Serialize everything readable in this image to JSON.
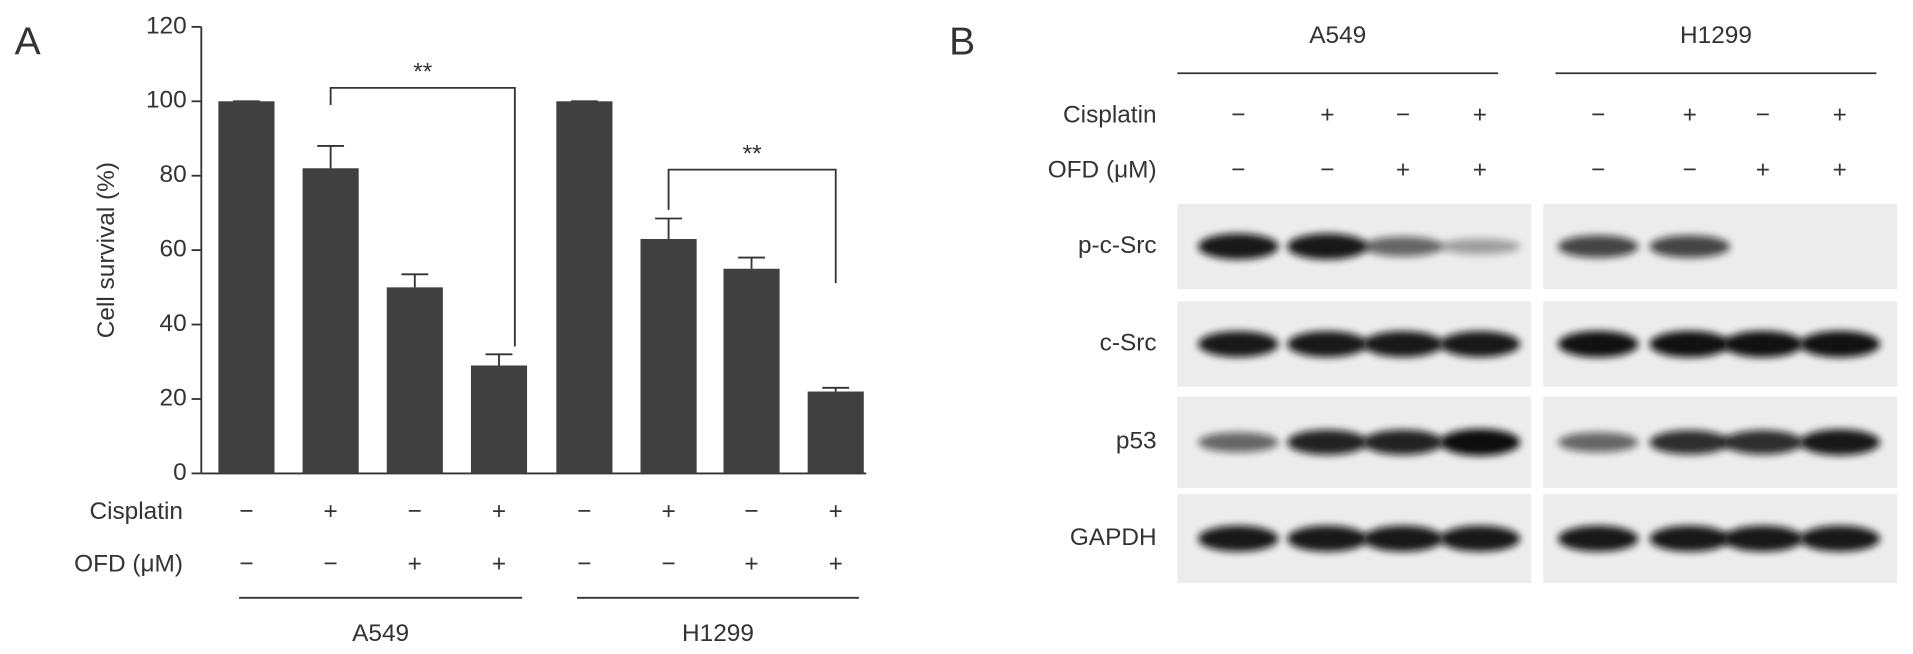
{
  "chart_data": {
    "type": "bar",
    "panel_label": "A",
    "y_label": "Cell survival (%)",
    "values": [
      100,
      82,
      50,
      29,
      100,
      63,
      55,
      22
    ],
    "errors": [
      0,
      6,
      3.5,
      3,
      0,
      5.5,
      3,
      1
    ],
    "color": "#404040",
    "ylim": [
      0,
      120
    ],
    "yticks": [
      0,
      20,
      40,
      60,
      80,
      100,
      120
    ],
    "treatments": [
      {
        "name": "Cisplatin",
        "signs": [
          "−",
          "+",
          "−",
          "+",
          "−",
          "+",
          "−",
          "+"
        ]
      },
      {
        "name": "OFD (μM)",
        "signs": [
          "−",
          "−",
          "+",
          "+",
          "−",
          "−",
          "+",
          "+"
        ]
      }
    ],
    "groups": [
      "A549",
      "H1299"
    ],
    "annotations": [
      "**",
      "**"
    ]
  },
  "blot": {
    "panel_label": "B",
    "cell_lines": [
      "A549",
      "H1299"
    ],
    "treatments": [
      {
        "name": "Cisplatin",
        "signs": [
          "−",
          "+",
          "−",
          "+",
          "−",
          "+",
          "−",
          "+"
        ]
      },
      {
        "name": "OFD (μM)",
        "signs": [
          "−",
          "−",
          "+",
          "+",
          "−",
          "−",
          "+",
          "+"
        ]
      }
    ],
    "proteins": [
      "p-c-Src",
      "c-Src",
      "p53",
      "GAPDH"
    ]
  }
}
